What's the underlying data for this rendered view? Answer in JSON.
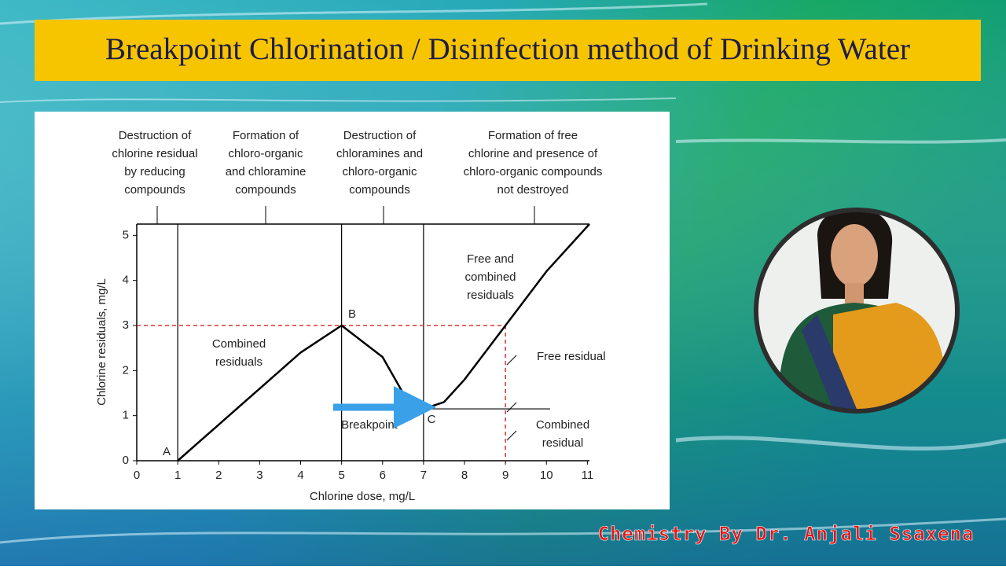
{
  "header": {
    "title": "Breakpoint Chlorination / Disinfection method of Drinking Water"
  },
  "footer": {
    "credit": "Chemistry By Dr. Anjali Ssaxena"
  },
  "chart_data": {
    "type": "line",
    "x_label": "Chlorine dose, mg/L",
    "y_label": "Chlorine residuals, mg/L",
    "x": [
      1,
      2,
      3,
      4,
      5,
      6,
      6.5,
      7,
      7.5,
      8,
      9,
      10,
      11.05
    ],
    "values": [
      0,
      0.8,
      1.6,
      2.4,
      3,
      2.3,
      1.5,
      1.15,
      1.3,
      1.8,
      3,
      4.2,
      5.25
    ],
    "color": "#000000",
    "xlim": [
      0,
      11.05
    ],
    "ylim": [
      0,
      5.25
    ],
    "xticks": [
      0,
      1,
      2,
      3,
      4,
      5,
      6,
      7,
      8,
      9,
      10,
      11
    ],
    "yticks": [
      0,
      1,
      2,
      3,
      4,
      5
    ],
    "zone_lines": [
      1,
      5,
      7
    ],
    "breakpoint_level": 1.15,
    "reference_y": 3,
    "reference_x": 9,
    "regions": [
      [
        "Destruction of",
        "chlorine residual",
        "by reducing",
        "compounds"
      ],
      [
        "Formation of",
        "chloro-organic",
        "and chloramine",
        "compounds"
      ],
      [
        "Destruction of",
        "chloramines and",
        "chloro-organic",
        "compounds"
      ],
      [
        "Formation of free",
        "chlorine and presence of",
        "chloro-organic compounds",
        "not destroyed"
      ]
    ],
    "annotations": [
      [
        "A"
      ],
      [
        "B"
      ],
      [
        "C"
      ],
      [
        "Combined",
        "residuals"
      ],
      [
        "Free and",
        "combined",
        "residuals"
      ],
      [
        "Free residual"
      ],
      [
        "Combined",
        "residual"
      ],
      [
        "Breakpoint"
      ]
    ]
  }
}
